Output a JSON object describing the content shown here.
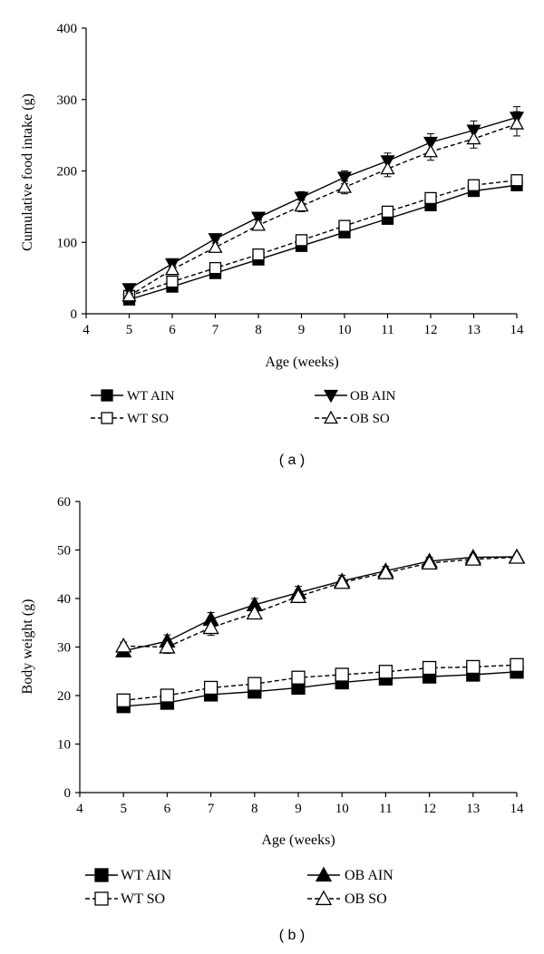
{
  "charts": [
    {
      "type": "line",
      "panel_label": "( a )",
      "title": "",
      "xlabel": "Age (weeks)",
      "ylabel": "Cumulative food intake (g)",
      "xlim": [
        4,
        14
      ],
      "ylim": [
        0,
        400
      ],
      "xticks": [
        4,
        5,
        6,
        7,
        8,
        9,
        10,
        11,
        12,
        13,
        14
      ],
      "yticks": [
        0,
        100,
        200,
        300,
        400
      ],
      "x": [
        5,
        6,
        7,
        8,
        9,
        10,
        11,
        12,
        13,
        14
      ],
      "series": [
        {
          "name": "WT AIN",
          "marker": "square",
          "filled": true,
          "dashed": false,
          "values": [
            20,
            38,
            57,
            76,
            95,
            114,
            133,
            152,
            172,
            180
          ],
          "errors": [
            3,
            3,
            3,
            3,
            4,
            4,
            4,
            5,
            5,
            5
          ]
        },
        {
          "name": "WT SO",
          "marker": "square",
          "filled": false,
          "dashed": true,
          "values": [
            25,
            45,
            64,
            83,
            103,
            123,
            143,
            162,
            180,
            187
          ],
          "errors": [
            3,
            3,
            3,
            3,
            4,
            4,
            4,
            5,
            5,
            5
          ]
        },
        {
          "name": "OB AIN",
          "marker": "triangle-down",
          "filled": true,
          "dashed": false,
          "values": [
            35,
            70,
            105,
            135,
            163,
            191,
            214,
            240,
            257,
            275
          ],
          "errors": [
            4,
            5,
            6,
            7,
            8,
            9,
            11,
            12,
            13,
            15
          ]
        },
        {
          "name": "OB SO",
          "marker": "triangle-up",
          "filled": false,
          "dashed": true,
          "values": [
            25,
            62,
            93,
            124,
            151,
            177,
            203,
            227,
            245,
            266
          ],
          "errors": [
            4,
            5,
            6,
            7,
            8,
            9,
            11,
            12,
            13,
            17
          ]
        }
      ],
      "legend": [
        {
          "label": "WT AIN",
          "series": 0
        },
        {
          "label": "WT SO",
          "series": 1
        },
        {
          "label": "OB AIN",
          "series": 2
        },
        {
          "label": "OB SO",
          "series": 3
        }
      ]
    },
    {
      "type": "line",
      "panel_label": "( b )",
      "title": "",
      "xlabel": "Age (weeks)",
      "ylabel": "Body weight (g)",
      "xlim": [
        4,
        14
      ],
      "ylim": [
        0,
        60
      ],
      "xticks": [
        4,
        5,
        6,
        7,
        8,
        9,
        10,
        11,
        12,
        13,
        14
      ],
      "yticks": [
        0,
        10,
        20,
        30,
        40,
        50,
        60
      ],
      "x": [
        5,
        6,
        7,
        8,
        9,
        10,
        11,
        12,
        13,
        14
      ],
      "series": [
        {
          "name": "WT AIN",
          "marker": "square",
          "filled": true,
          "dashed": false,
          "values": [
            17.8,
            18.5,
            20.2,
            20.8,
            21.6,
            22.7,
            23.5,
            23.9,
            24.3,
            24.9
          ],
          "errors": [
            0.4,
            0.4,
            0.5,
            0.5,
            0.5,
            0.5,
            0.5,
            0.5,
            0.5,
            0.5
          ]
        },
        {
          "name": "WT SO",
          "marker": "square",
          "filled": false,
          "dashed": true,
          "values": [
            19.0,
            20.0,
            21.6,
            22.4,
            23.7,
            24.3,
            24.9,
            25.7,
            25.9,
            26.3
          ],
          "errors": [
            0.4,
            0.4,
            0.5,
            0.5,
            0.5,
            0.5,
            0.5,
            0.5,
            0.5,
            0.5
          ]
        },
        {
          "name": "OB AIN",
          "marker": "triangle-up",
          "filled": true,
          "dashed": false,
          "values": [
            29.2,
            31.2,
            35.7,
            38.7,
            41.2,
            43.6,
            45.7,
            47.7,
            48.5,
            48.6
          ],
          "errors": [
            0.8,
            1.3,
            1.4,
            1.3,
            1.3,
            1.2,
            0.9,
            0.8,
            0.6,
            0.5
          ]
        },
        {
          "name": "OB SO",
          "marker": "triangle-up",
          "filled": false,
          "dashed": true,
          "values": [
            30.2,
            30.0,
            34.0,
            37.0,
            40.4,
            43.3,
            45.3,
            47.3,
            48.1,
            48.5
          ],
          "errors": [
            0.8,
            1.3,
            1.6,
            1.2,
            1.0,
            0.9,
            0.8,
            0.7,
            0.6,
            0.5
          ]
        }
      ],
      "legend": [
        {
          "label": "WT AIN",
          "series": 0
        },
        {
          "label": "WT SO",
          "series": 1
        },
        {
          "label": "OB AIN",
          "series": 2
        },
        {
          "label": "OB SO",
          "series": 3
        }
      ]
    }
  ]
}
